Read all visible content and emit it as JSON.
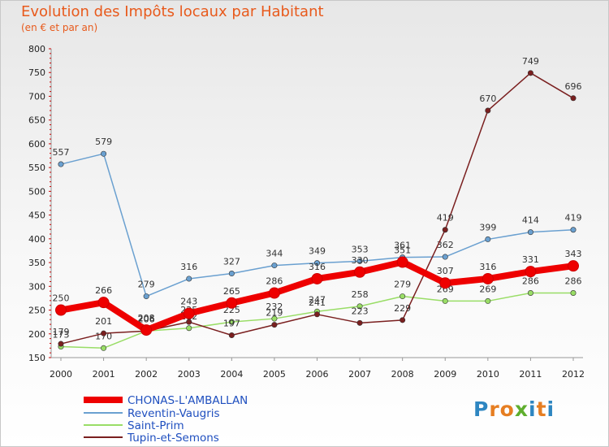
{
  "chart_data": {
    "type": "line",
    "title": "Evolution des Impôts locaux par Habitant",
    "subtitle": "(en € et par an)",
    "xlabel": "",
    "ylabel": "",
    "x": [
      "2000",
      "2001",
      "2002",
      "2003",
      "2004",
      "2005",
      "2006",
      "2007",
      "2008",
      "2009",
      "2010",
      "2011",
      "2012"
    ],
    "ylim": [
      150,
      800
    ],
    "yticks": [
      150,
      200,
      250,
      300,
      350,
      400,
      450,
      500,
      550,
      600,
      650,
      700,
      750,
      800
    ],
    "grid": false,
    "legend_position": "bottom-left",
    "series": [
      {
        "name": "CHONAS-L'AMBALLAN",
        "color": "#ee0000",
        "emphasis": true,
        "values": [
          250,
          266,
          208,
          243,
          265,
          286,
          316,
          330,
          351,
          307,
          316,
          331,
          343
        ]
      },
      {
        "name": "Reventin-Vaugris",
        "color": "#6aa0d0",
        "values": [
          557,
          579,
          279,
          316,
          327,
          344,
          349,
          353,
          361,
          362,
          399,
          414,
          419
        ]
      },
      {
        "name": "Saint-Prim",
        "color": "#99dd66",
        "values": [
          173,
          170,
          206,
          212,
          225,
          232,
          247,
          258,
          279,
          269,
          269,
          286,
          286
        ]
      },
      {
        "name": "Tupin-et-Semons",
        "color": "#7a1f1f",
        "values": [
          179,
          201,
          206,
          225,
          197,
          219,
          241,
          223,
          229,
          419,
          670,
          749,
          696
        ]
      }
    ]
  },
  "branding": {
    "logo_text": "Proxiti",
    "logo_colors": [
      "#2e86c1",
      "#e67e22",
      "#e67e22",
      "#5fae2e",
      "#2e86c1",
      "#e67e22",
      "#2e86c1"
    ]
  }
}
